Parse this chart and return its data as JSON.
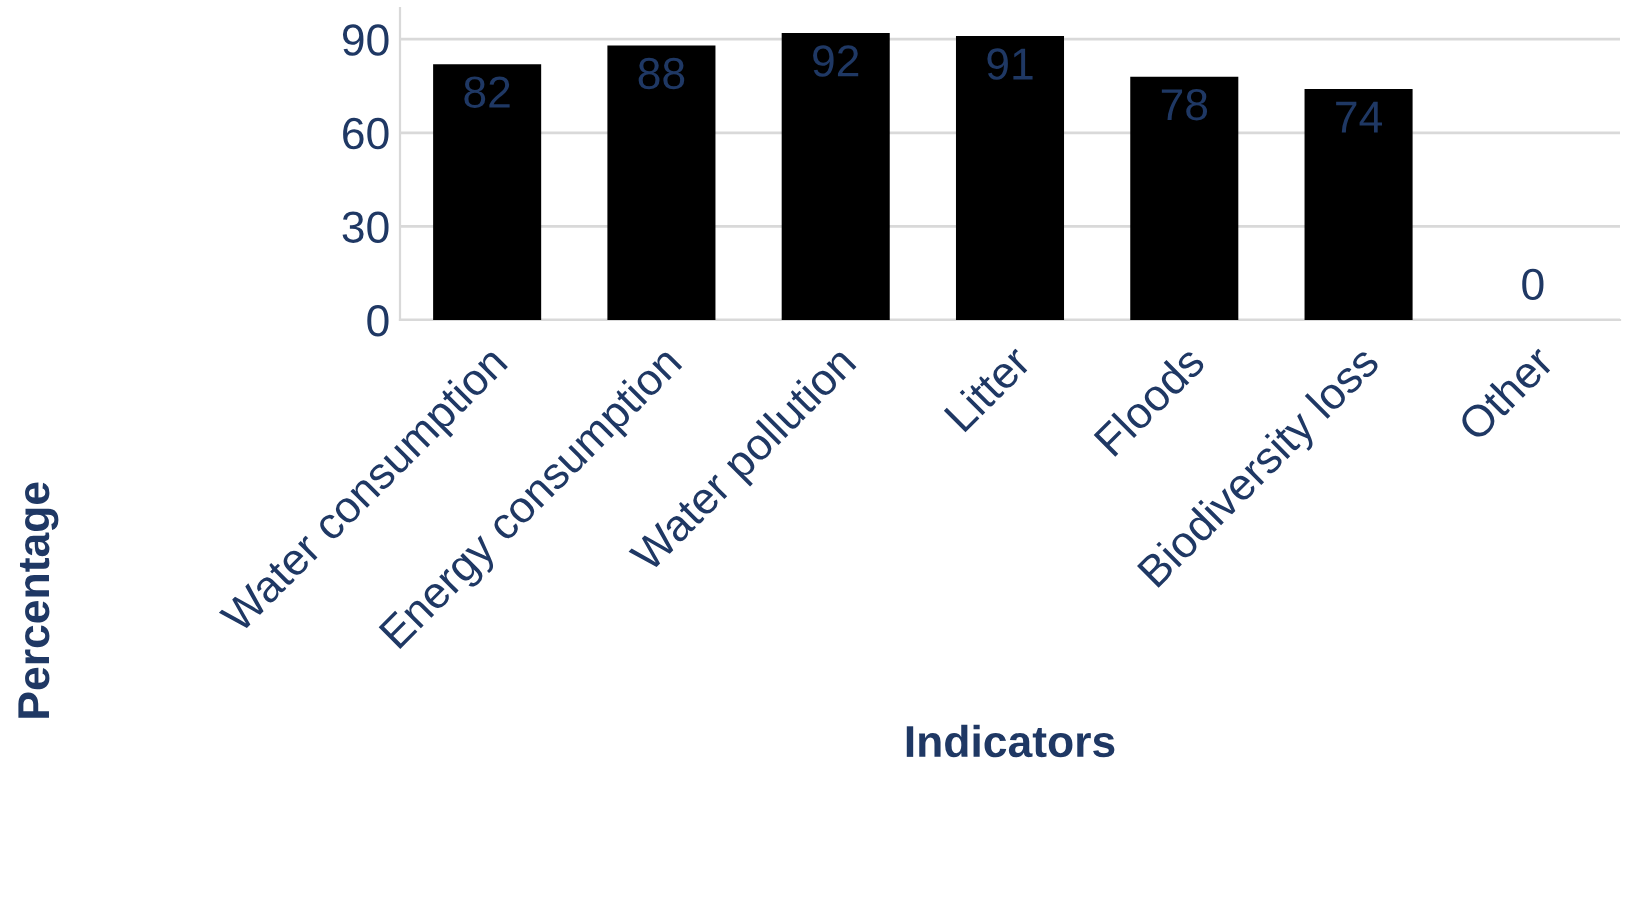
{
  "chart_data": {
    "type": "bar",
    "xlabel": "Indicators",
    "ylabel": "Percentage",
    "categories": [
      "Water consumption",
      "Energy consumption",
      "Water pollution",
      "Litter",
      "Floods",
      "Biodiversity loss",
      "Other"
    ],
    "values": [
      82,
      88,
      92,
      91,
      78,
      74,
      0
    ],
    "color": "#000000",
    "ylim": [
      0,
      100
    ],
    "yticks": [
      0,
      30,
      60,
      90
    ],
    "grid": "y",
    "data_labels": true
  }
}
